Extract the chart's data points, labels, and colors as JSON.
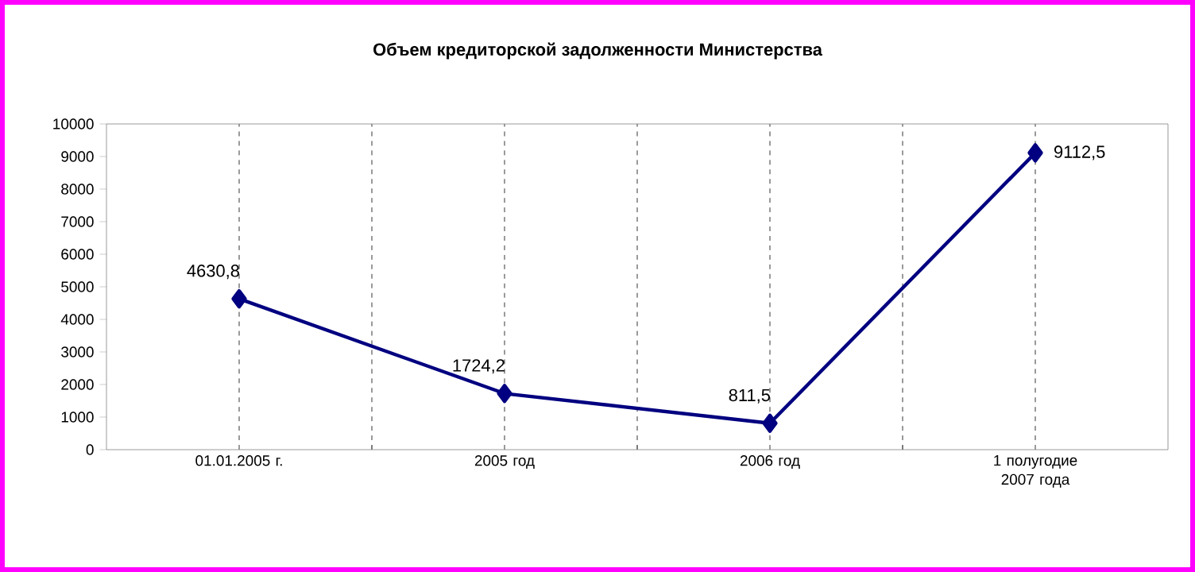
{
  "chart_data": {
    "type": "line",
    "title": "Объем кредиторской задолженности Министерства",
    "categories": [
      "01.01.2005 г.",
      "2005 год",
      "2006 год",
      "1 полугодие 2007 года"
    ],
    "series": [
      {
        "color": "#000080",
        "values": [
          4630.8,
          1724.2,
          811.5,
          9112.5
        ],
        "value_labels": [
          "4630,8",
          "1724,2",
          "811,5",
          "9112,5"
        ]
      }
    ],
    "ylim": [
      0,
      10000
    ],
    "yticks": [
      0,
      1000,
      2000,
      3000,
      4000,
      5000,
      6000,
      7000,
      8000,
      9000,
      10000
    ],
    "grid": "x",
    "marker": "diamond",
    "line_style": "solid"
  }
}
